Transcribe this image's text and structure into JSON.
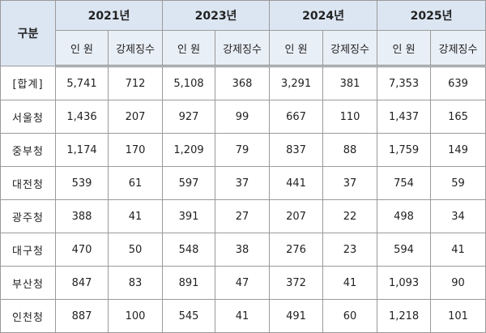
{
  "table": {
    "header": {
      "label": "구분",
      "years": [
        "2021년",
        "2023년",
        "2024년",
        "2025년"
      ],
      "subheaders": [
        "인 원",
        "강제징수",
        "인 원",
        "강제징수",
        "인 원",
        "강제징수",
        "인 원",
        "강제징수"
      ]
    },
    "rows": [
      [
        "[합계]",
        "5,741",
        "712",
        "5,108",
        "368",
        "3,291",
        "381",
        "7,353",
        "639"
      ],
      [
        "서울청",
        "1,436",
        "207",
        "927",
        "99",
        "667",
        "110",
        "1,437",
        "165"
      ],
      [
        "중부청",
        "1,174",
        "170",
        "1,209",
        "79",
        "837",
        "88",
        "1,759",
        "149"
      ],
      [
        "대전청",
        "539",
        "61",
        "597",
        "37",
        "441",
        "37",
        "754",
        "59"
      ],
      [
        "광주청",
        "388",
        "41",
        "391",
        "27",
        "207",
        "22",
        "498",
        "34"
      ],
      [
        "대구청",
        "470",
        "50",
        "548",
        "38",
        "276",
        "23",
        "594",
        "41"
      ],
      [
        "부산청",
        "847",
        "83",
        "891",
        "47",
        "372",
        "41",
        "1,093",
        "90"
      ],
      [
        "인천청",
        "887",
        "100",
        "545",
        "41",
        "491",
        "60",
        "1,218",
        "101"
      ]
    ]
  }
}
